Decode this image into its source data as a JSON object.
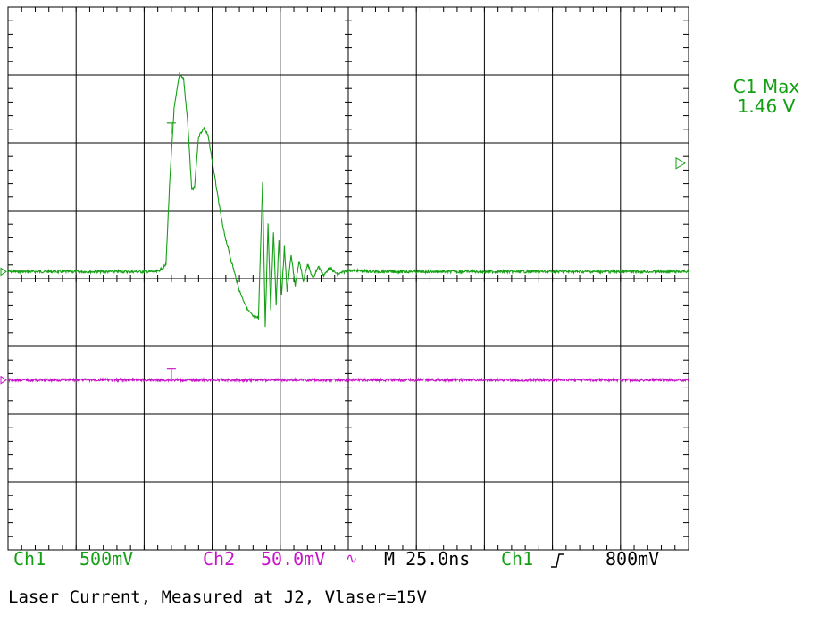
{
  "colors": {
    "ch1": "#14a014",
    "ch2": "#c814c8",
    "grid": "#000000",
    "text": "#000000"
  },
  "status_bar": {
    "ch1_label": "Ch1",
    "ch1_scale": "500mV",
    "ch2_label": "Ch2",
    "ch2_scale": "50.0mV",
    "ch2_bw_symbol": "∿",
    "timebase": "M 25.0ns",
    "trigger_source": "Ch1",
    "trigger_slope_icon": "rising-edge-icon",
    "trigger_level": "800mV"
  },
  "measurement": {
    "label": "C1 Max",
    "value": "1.46 V"
  },
  "caption": "Laser Current, Measured at J2, Vlaser=15V",
  "chart_data": {
    "type": "line",
    "x_unit": "ns",
    "ns_per_div": 25,
    "divisions_x": 10,
    "divisions_y": 8,
    "xlim": [
      0,
      250
    ],
    "grid": true,
    "series": [
      {
        "name": "Ch1",
        "volts_per_div": 0.5,
        "ylim": [
          -1.25,
          2.75
        ],
        "trigger_level_v": 0.8,
        "x": [
          0,
          20,
          40,
          55,
          58,
          59.5,
          61,
          63,
          64.5,
          66,
          67.5,
          68.5,
          70,
          72,
          73.5,
          75,
          77,
          79,
          82,
          85,
          88,
          90,
          92,
          93.5,
          94.5,
          95.5,
          96.5,
          97.5,
          98.5,
          99.5,
          100.5,
          101.5,
          102.5,
          104,
          105.5,
          107,
          108.5,
          110,
          112,
          114,
          116,
          118,
          121,
          125,
          135,
          160,
          200,
          250
        ],
        "y": [
          0.0,
          0.0,
          0.0,
          0.0,
          0.05,
          0.7,
          1.2,
          1.46,
          1.42,
          1.1,
          0.6,
          0.62,
          1.0,
          1.06,
          1.0,
          0.82,
          0.56,
          0.32,
          0.08,
          -0.14,
          -0.28,
          -0.33,
          -0.34,
          0.66,
          -0.4,
          0.36,
          -0.28,
          0.3,
          -0.24,
          0.24,
          -0.18,
          0.18,
          -0.14,
          0.12,
          -0.1,
          0.08,
          -0.07,
          0.06,
          -0.05,
          0.04,
          -0.03,
          0.03,
          -0.02,
          0.01,
          0.0,
          0.0,
          0.0,
          0.0
        ]
      },
      {
        "name": "Ch2",
        "volts_per_div": 0.05,
        "ylim": [
          -0.2,
          0.2
        ],
        "x": [
          0,
          250
        ],
        "y": [
          0.0,
          0.0
        ]
      }
    ]
  }
}
